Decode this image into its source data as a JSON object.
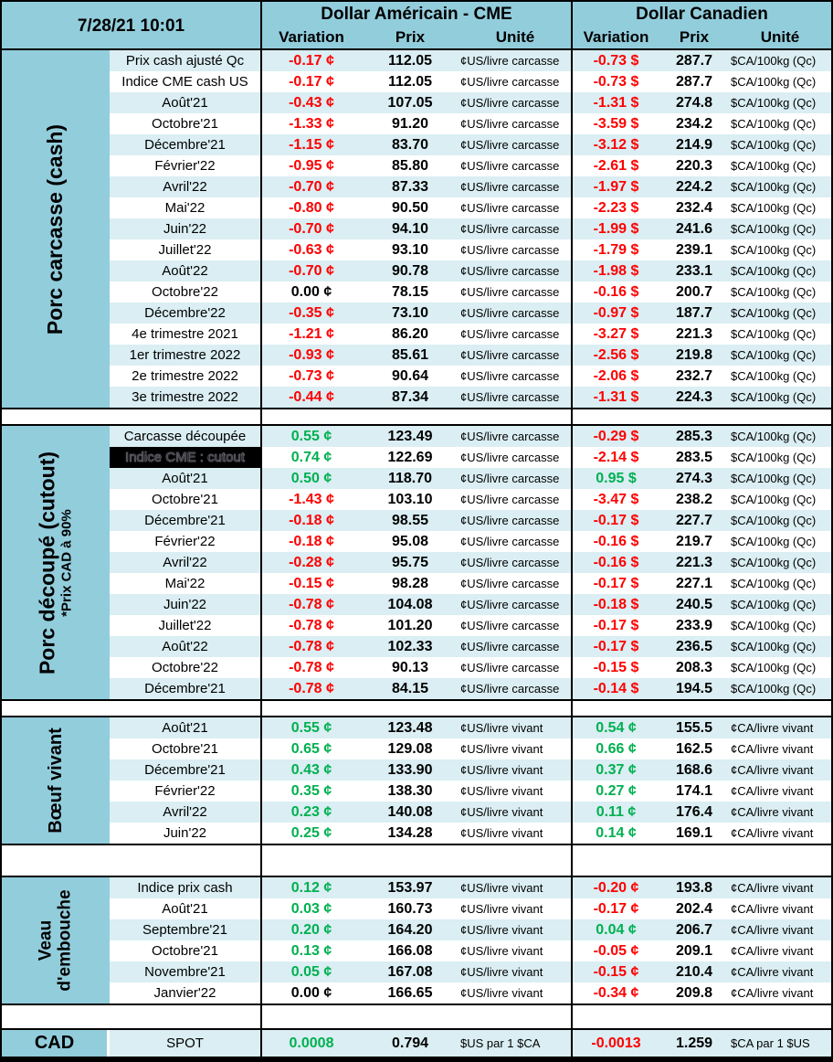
{
  "header": {
    "datetime": "7/28/21 10:01",
    "us_title": "Dollar Américain - CME",
    "ca_title": "Dollar Canadien",
    "columns": {
      "variation": "Variation",
      "prix": "Prix",
      "unite": "Unité"
    }
  },
  "colors": {
    "negative": "#FF0000",
    "positive": "#00B050",
    "neutral": "#000000",
    "header_blue": "#92CDDC",
    "stripe_blue": "#DAEEF3",
    "selected_bg": "#000000"
  },
  "sections": [
    {
      "label_lines": [
        "Porc carcasse (cash)"
      ],
      "sub_label": "",
      "us_unit": "¢US/livre carcasse",
      "ca_unit": "$CA/100kg (Qc)",
      "rows": [
        {
          "label": "Prix cash ajusté Qc",
          "us_var": "-0.17 ¢",
          "us_prix": "112.05",
          "ca_var": "-0.73 $",
          "ca_prix": "287.7"
        },
        {
          "label": "Indice CME cash US",
          "us_var": "-0.17 ¢",
          "us_prix": "112.05",
          "ca_var": "-0.73 $",
          "ca_prix": "287.7"
        },
        {
          "label": "Août'21",
          "us_var": "-0.43 ¢",
          "us_prix": "107.05",
          "ca_var": "-1.31 $",
          "ca_prix": "274.8"
        },
        {
          "label": "Octobre'21",
          "us_var": "-1.33 ¢",
          "us_prix": "91.20",
          "ca_var": "-3.59 $",
          "ca_prix": "234.2"
        },
        {
          "label": "Décembre'21",
          "us_var": "-1.15 ¢",
          "us_prix": "83.70",
          "ca_var": "-3.12 $",
          "ca_prix": "214.9"
        },
        {
          "label": "Février'22",
          "us_var": "-0.95 ¢",
          "us_prix": "85.80",
          "ca_var": "-2.61 $",
          "ca_prix": "220.3"
        },
        {
          "label": "Avril'22",
          "us_var": "-0.70 ¢",
          "us_prix": "87.33",
          "ca_var": "-1.97 $",
          "ca_prix": "224.2"
        },
        {
          "label": "Mai'22",
          "us_var": "-0.80 ¢",
          "us_prix": "90.50",
          "ca_var": "-2.23 $",
          "ca_prix": "232.4"
        },
        {
          "label": "Juin'22",
          "us_var": "-0.70 ¢",
          "us_prix": "94.10",
          "ca_var": "-1.99 $",
          "ca_prix": "241.6"
        },
        {
          "label": "Juillet'22",
          "us_var": "-0.63 ¢",
          "us_prix": "93.10",
          "ca_var": "-1.79 $",
          "ca_prix": "239.1"
        },
        {
          "label": "Août'22",
          "us_var": "-0.70 ¢",
          "us_prix": "90.78",
          "ca_var": "-1.98 $",
          "ca_prix": "233.1"
        },
        {
          "label": "Octobre'22",
          "us_var": "0.00 ¢",
          "us_prix": "78.15",
          "ca_var": "-0.16 $",
          "ca_prix": "200.7"
        },
        {
          "label": "Décembre'22",
          "us_var": "-0.35 ¢",
          "us_prix": "73.10",
          "ca_var": "-0.97 $",
          "ca_prix": "187.7"
        },
        {
          "label": "4e trimestre 2021",
          "us_var": "-1.21 ¢",
          "us_prix": "86.20",
          "ca_var": "-3.27 $",
          "ca_prix": "221.3"
        },
        {
          "label": "1er trimestre 2022",
          "us_var": "-0.93 ¢",
          "us_prix": "85.61",
          "ca_var": "-2.56 $",
          "ca_prix": "219.8"
        },
        {
          "label": "2e trimestre 2022",
          "us_var": "-0.73 ¢",
          "us_prix": "90.64",
          "ca_var": "-2.06 $",
          "ca_prix": "232.7"
        },
        {
          "label": "3e trimestre 2022",
          "us_var": "-0.44 ¢",
          "us_prix": "87.34",
          "ca_var": "-1.31 $",
          "ca_prix": "224.3"
        }
      ]
    },
    {
      "label_lines": [
        "Porc découpé (cutout)"
      ],
      "sub_label": "*Prix CAD à 90%",
      "us_unit": "¢US/livre carcasse",
      "ca_unit": "$CA/100kg (Qc)",
      "rows": [
        {
          "label": "Carcasse découpée",
          "us_var": "0.55 ¢",
          "us_prix": "123.49",
          "ca_var": "-0.29 $",
          "ca_prix": "285.3"
        },
        {
          "label": "Indice CME : cutout",
          "selected": true,
          "us_var": "0.74 ¢",
          "us_prix": "122.69",
          "ca_var": "-2.14 $",
          "ca_prix": "283.5"
        },
        {
          "label": "Août'21",
          "us_var": "0.50 ¢",
          "us_prix": "118.70",
          "ca_var": "0.95 $",
          "ca_prix": "274.3"
        },
        {
          "label": "Octobre'21",
          "us_var": "-1.43 ¢",
          "us_prix": "103.10",
          "ca_var": "-3.47 $",
          "ca_prix": "238.2"
        },
        {
          "label": "Décembre'21",
          "us_var": "-0.18 ¢",
          "us_prix": "98.55",
          "ca_var": "-0.17 $",
          "ca_prix": "227.7"
        },
        {
          "label": "Février'22",
          "us_var": "-0.18 ¢",
          "us_prix": "95.08",
          "ca_var": "-0.16 $",
          "ca_prix": "219.7"
        },
        {
          "label": "Avril'22",
          "us_var": "-0.28 ¢",
          "us_prix": "95.75",
          "ca_var": "-0.16 $",
          "ca_prix": "221.3"
        },
        {
          "label": "Mai'22",
          "us_var": "-0.15 ¢",
          "us_prix": "98.28",
          "ca_var": "-0.17 $",
          "ca_prix": "227.1"
        },
        {
          "label": "Juin'22",
          "us_var": "-0.78 ¢",
          "us_prix": "104.08",
          "ca_var": "-0.18 $",
          "ca_prix": "240.5"
        },
        {
          "label": "Juillet'22",
          "us_var": "-0.78 ¢",
          "us_prix": "101.20",
          "ca_var": "-0.17 $",
          "ca_prix": "233.9"
        },
        {
          "label": "Août'22",
          "us_var": "-0.78 ¢",
          "us_prix": "102.33",
          "ca_var": "-0.17 $",
          "ca_prix": "236.5"
        },
        {
          "label": "Octobre'22",
          "us_var": "-0.78 ¢",
          "us_prix": "90.13",
          "ca_var": "-0.15 $",
          "ca_prix": "208.3"
        },
        {
          "label": "Décembre'21",
          "us_var": "-0.78 ¢",
          "us_prix": "84.15",
          "ca_var": "-0.14 $",
          "ca_prix": "194.5"
        }
      ]
    },
    {
      "label_lines": [
        "Bœuf vivant"
      ],
      "sub_label": "",
      "us_unit": "¢US/livre vivant",
      "ca_unit": "¢CA/livre vivant",
      "rows": [
        {
          "label": "Août'21",
          "us_var": "0.55 ¢",
          "us_prix": "123.48",
          "ca_var": "0.54 ¢",
          "ca_prix": "155.5"
        },
        {
          "label": "Octobre'21",
          "us_var": "0.65 ¢",
          "us_prix": "129.08",
          "ca_var": "0.66 ¢",
          "ca_prix": "162.5"
        },
        {
          "label": "Décembre'21",
          "us_var": "0.43 ¢",
          "us_prix": "133.90",
          "ca_var": "0.37 ¢",
          "ca_prix": "168.6"
        },
        {
          "label": "Février'22",
          "us_var": "0.35 ¢",
          "us_prix": "138.30",
          "ca_var": "0.27 ¢",
          "ca_prix": "174.1"
        },
        {
          "label": "Avril'22",
          "us_var": "0.23 ¢",
          "us_prix": "140.08",
          "ca_var": "0.11 ¢",
          "ca_prix": "176.4"
        },
        {
          "label": "Juin'22",
          "us_var": "0.25 ¢",
          "us_prix": "134.28",
          "ca_var": "0.14 ¢",
          "ca_prix": "169.1"
        }
      ]
    },
    {
      "label_lines": [
        "Veau",
        "d'embouche"
      ],
      "sub_label": "",
      "us_unit": "¢US/livre vivant",
      "ca_unit": "¢CA/livre vivant",
      "rows": [
        {
          "label": "Indice prix cash",
          "us_var": "0.12 ¢",
          "us_prix": "153.97",
          "ca_var": "-0.20 ¢",
          "ca_prix": "193.8"
        },
        {
          "label": "Août'21",
          "us_var": "0.03 ¢",
          "us_prix": "160.73",
          "ca_var": "-0.17 ¢",
          "ca_prix": "202.4"
        },
        {
          "label": "Septembre'21",
          "us_var": "0.20 ¢",
          "us_prix": "164.20",
          "ca_var": "0.04 ¢",
          "ca_prix": "206.7"
        },
        {
          "label": "Octobre'21",
          "us_var": "0.13 ¢",
          "us_prix": "166.08",
          "ca_var": "-0.05 ¢",
          "ca_prix": "209.1"
        },
        {
          "label": "Novembre'21",
          "us_var": "0.05 ¢",
          "us_prix": "167.08",
          "ca_var": "-0.15 ¢",
          "ca_prix": "210.4"
        },
        {
          "label": "Janvier'22",
          "us_var": "0.00 ¢",
          "us_prix": "166.65",
          "ca_var": "-0.34 ¢",
          "ca_prix": "209.8"
        }
      ]
    }
  ],
  "cad": {
    "label": "CAD",
    "sublabel": "SPOT",
    "us_var": "0.0008",
    "us_prix": "0.794",
    "us_unit": "$US par 1 $CA",
    "ca_var": "-0.0013",
    "ca_prix": "1.259",
    "ca_unit": "$CA par 1 $US"
  }
}
